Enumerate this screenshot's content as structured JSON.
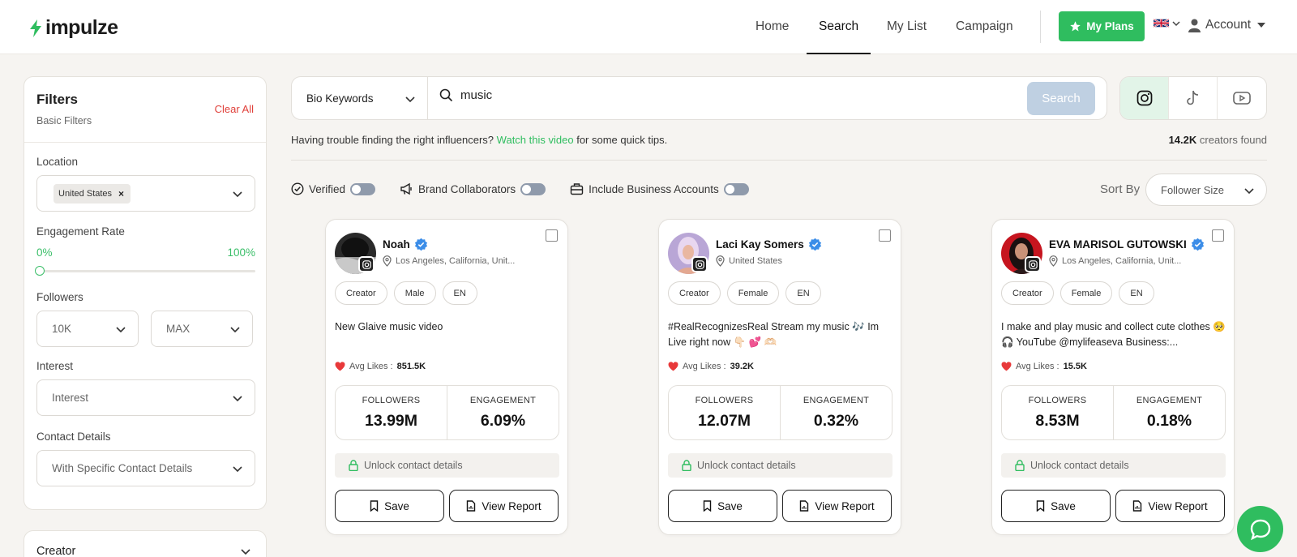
{
  "header": {
    "brand": "impulze",
    "nav": [
      {
        "label": "Home",
        "active": false
      },
      {
        "label": "Search",
        "active": true
      },
      {
        "label": "My List",
        "active": false
      },
      {
        "label": "Campaign",
        "active": false
      }
    ],
    "plans_label": "My Plans",
    "account_label": "Account",
    "accent_color": "#2fbd5f"
  },
  "filters": {
    "title": "Filters",
    "subtitle": "Basic Filters",
    "clear_label": "Clear All",
    "location_label": "Location",
    "location_value": "United States",
    "engagement_label": "Engagement Rate",
    "engagement_min": "0%",
    "engagement_max": "100%",
    "followers_label": "Followers",
    "followers_min": "10K",
    "followers_max": "MAX",
    "interest_label": "Interest",
    "interest_placeholder": "Interest",
    "contact_label": "Contact Details",
    "contact_placeholder": "With Specific Contact Details",
    "creator_section": "Creator"
  },
  "search": {
    "type_label": "Bio Keywords",
    "query": "music",
    "button_label": "Search",
    "platforms": [
      "instagram-icon",
      "tiktok-icon",
      "youtube-icon"
    ],
    "active_platform": "instagram"
  },
  "hint": {
    "before": "Having trouble finding the right influencers?",
    "link": "Watch this video",
    "after": "for some quick tips."
  },
  "results": {
    "count": "14.2K",
    "count_suffix": "creators found"
  },
  "toggles": [
    {
      "label": "Verified",
      "icon": "verified-check-icon"
    },
    {
      "label": "Brand Collaborators",
      "icon": "megaphone-icon"
    },
    {
      "label": "Include Business Accounts",
      "icon": "briefcase-icon"
    }
  ],
  "sort": {
    "label": "Sort By",
    "value": "Follower Size"
  },
  "card_labels": {
    "avg_likes": "Avg Likes :",
    "followers": "FOLLOWERS",
    "engagement": "ENGAGEMENT",
    "unlock": "Unlock contact details",
    "save": "Save",
    "report": "View Report"
  },
  "creators": [
    {
      "name": "Noah",
      "location": "Los Angeles, California, Unit...",
      "tags": [
        "Creator",
        "Male",
        "EN"
      ],
      "bio": "New Glaive music video",
      "avg_likes": "851.5K",
      "followers": "13.99M",
      "engagement": "6.09%"
    },
    {
      "name": "Laci Kay Somers",
      "location": "United States",
      "tags": [
        "Creator",
        "Female",
        "EN"
      ],
      "bio": "#RealRecognizesReal Stream my music 🎶 Im Live right now 👇🏻 💕 🫶🏻",
      "avg_likes": "39.2K",
      "followers": "12.07M",
      "engagement": "0.32%"
    },
    {
      "name": "EVA MARISOL GUTOWSKI",
      "location": "Los Angeles, California, Unit...",
      "tags": [
        "Creator",
        "Female",
        "EN"
      ],
      "bio": "I make and play music and collect cute clothes 🥺 🎧 YouTube @mylifeaseva Business:...",
      "avg_likes": "15.5K",
      "followers": "8.53M",
      "engagement": "0.18%"
    }
  ]
}
